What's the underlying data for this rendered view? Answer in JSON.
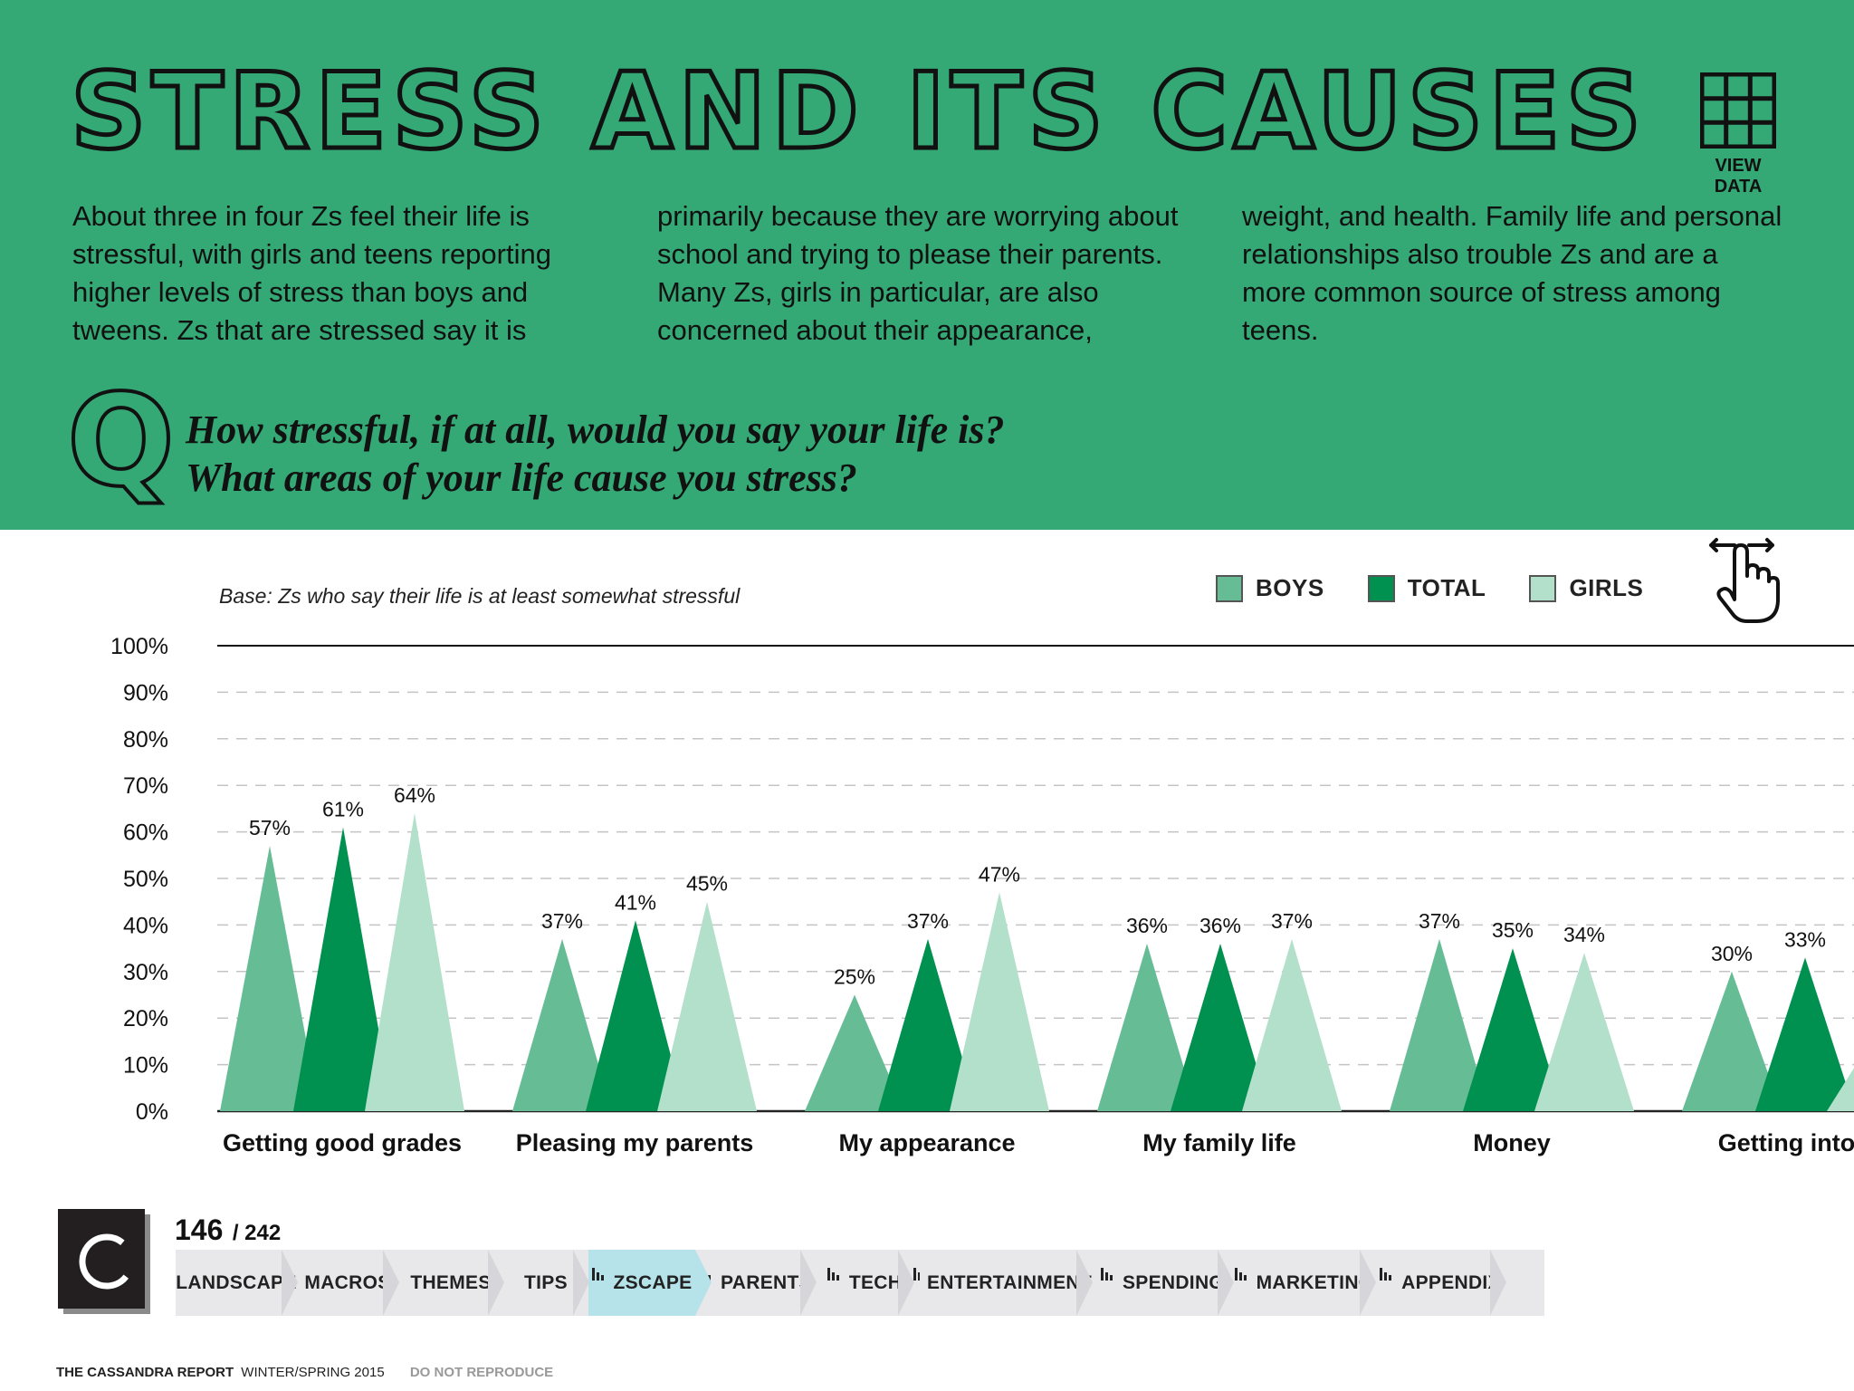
{
  "header": {
    "title": "STRESS AND ITS CAUSES",
    "view_data_label": "VIEW DATA",
    "intro": [
      "About three in four Zs feel their life is stressful, with girls and teens reporting higher levels of stress than boys and tweens. Zs that are stressed say it is",
      "primarily because they are worrying about school and trying to please their parents. Many Zs, girls in particular, are also concerned about their appearance,",
      "weight, and health. Family life and personal relationships also trouble Zs and are a more common source of stress among teens."
    ],
    "q_glyph": "Q",
    "question_line_1": "How stressful, if at all, would you say your life is?",
    "question_line_2": "What areas of your life cause you stress?"
  },
  "chart_data": {
    "type": "bar",
    "mark_shape": "triangle",
    "base_note": "Base: Zs who say their life is at least somewhat stressful",
    "ylim": [
      0,
      100
    ],
    "y_ticks": [
      0,
      10,
      20,
      30,
      40,
      50,
      60,
      70,
      80,
      90,
      100
    ],
    "y_tick_labels": [
      "0%",
      "10%",
      "20%",
      "30%",
      "40%",
      "50%",
      "60%",
      "70%",
      "80%",
      "90%",
      "100%"
    ],
    "categories": [
      "Getting good grades",
      "Pleasing my parents",
      "My appearance",
      "My family life",
      "Money",
      "Getting into co"
    ],
    "series": [
      {
        "name": "BOYS",
        "color": "#66bd95",
        "values": [
          57,
          37,
          25,
          36,
          37,
          30
        ],
        "labels": [
          "57%",
          "37%",
          "25%",
          "36%",
          "37%",
          "30%"
        ]
      },
      {
        "name": "TOTAL",
        "color": "#009150",
        "values": [
          61,
          41,
          37,
          36,
          35,
          33
        ],
        "labels": [
          "61%",
          "41%",
          "37%",
          "36%",
          "35%",
          "33%"
        ]
      },
      {
        "name": "GIRLS",
        "color": "#b3e0cb",
        "values": [
          64,
          45,
          47,
          37,
          34,
          17
        ],
        "labels": [
          "64%",
          "45%",
          "47%",
          "37%",
          "34%",
          ""
        ]
      }
    ],
    "legend": [
      "BOYS",
      "TOTAL",
      "GIRLS"
    ],
    "legend_position": "top-right",
    "grid": true
  },
  "footer": {
    "logo_letter": "C",
    "page_current": "146",
    "page_total": "/ 242",
    "nav": [
      {
        "label": "LANDSCAPE",
        "bars": false,
        "active": false
      },
      {
        "label": "MACROS",
        "bars": false,
        "active": false
      },
      {
        "label": "THEMES",
        "bars": false,
        "active": false
      },
      {
        "label": "TIPS",
        "bars": false,
        "active": false
      },
      {
        "label": "ZSCAPE",
        "bars": true,
        "active": true
      },
      {
        "label": "PARENTS",
        "bars": true,
        "active": false
      },
      {
        "label": "TECH",
        "bars": true,
        "active": false
      },
      {
        "label": "ENTERTAINMENT",
        "bars": true,
        "active": false
      },
      {
        "label": "SPENDING",
        "bars": true,
        "active": false
      },
      {
        "label": "MARKETING",
        "bars": true,
        "active": false
      },
      {
        "label": "APPENDIX",
        "bars": true,
        "active": false
      }
    ],
    "report_name": "THE CASSANDRA REPORT",
    "issue": "WINTER/SPRING 2015",
    "notice": "DO NOT REPRODUCE"
  }
}
